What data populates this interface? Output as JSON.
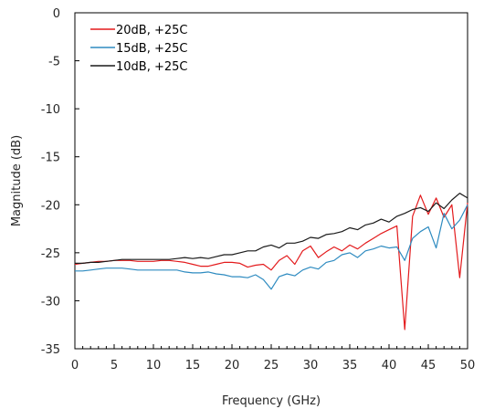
{
  "chart_data": {
    "type": "line",
    "xlabel": "Frequency (GHz)",
    "ylabel": "Magnitude (dB)",
    "xlim": [
      0,
      50
    ],
    "ylim": [
      -35,
      0
    ],
    "xticks": [
      0,
      5,
      10,
      15,
      20,
      25,
      30,
      35,
      40,
      45,
      50
    ],
    "yticks": [
      0,
      -5,
      -10,
      -15,
      -20,
      -25,
      -30,
      -35
    ],
    "grid": false,
    "legend_position": "top-left",
    "series": [
      {
        "name": "20dB, +25C",
        "color": "#e31a1c",
        "x": [
          0,
          1,
          2,
          3,
          4,
          5,
          6,
          7,
          8,
          9,
          10,
          11,
          12,
          13,
          14,
          15,
          16,
          17,
          18,
          19,
          20,
          21,
          22,
          23,
          24,
          25,
          26,
          27,
          28,
          29,
          30,
          31,
          32,
          33,
          34,
          35,
          36,
          37,
          38,
          39,
          40,
          41,
          42,
          43,
          44,
          45,
          46,
          47,
          48,
          49,
          50
        ],
        "y": [
          -26.2,
          -26.1,
          -26.0,
          -25.9,
          -25.9,
          -25.8,
          -25.8,
          -25.8,
          -25.9,
          -25.9,
          -25.9,
          -25.8,
          -25.8,
          -25.9,
          -26.0,
          -26.2,
          -26.4,
          -26.4,
          -26.2,
          -26.0,
          -26.0,
          -26.1,
          -26.5,
          -26.3,
          -26.2,
          -26.8,
          -25.8,
          -25.3,
          -26.2,
          -24.8,
          -24.3,
          -25.5,
          -24.9,
          -24.4,
          -24.8,
          -24.2,
          -24.6,
          -24.0,
          -23.5,
          -23.0,
          -22.6,
          -22.2,
          -33.0,
          -21.2,
          -19.0,
          -21.0,
          -19.3,
          -21.3,
          -20.0,
          -27.6,
          -19.8
        ]
      },
      {
        "name": "15dB, +25C",
        "color": "#2e8bc0",
        "x": [
          0,
          1,
          2,
          3,
          4,
          5,
          6,
          7,
          8,
          9,
          10,
          11,
          12,
          13,
          14,
          15,
          16,
          17,
          18,
          19,
          20,
          21,
          22,
          23,
          24,
          25,
          26,
          27,
          28,
          29,
          30,
          31,
          32,
          33,
          34,
          35,
          36,
          37,
          38,
          39,
          40,
          41,
          42,
          43,
          44,
          45,
          46,
          47,
          48,
          49,
          50
        ],
        "y": [
          -26.9,
          -26.9,
          -26.8,
          -26.7,
          -26.6,
          -26.6,
          -26.6,
          -26.7,
          -26.8,
          -26.8,
          -26.8,
          -26.8,
          -26.8,
          -26.8,
          -27.0,
          -27.1,
          -27.1,
          -27.0,
          -27.2,
          -27.3,
          -27.5,
          -27.5,
          -27.6,
          -27.3,
          -27.8,
          -28.8,
          -27.5,
          -27.2,
          -27.4,
          -26.8,
          -26.5,
          -26.7,
          -26.0,
          -25.8,
          -25.2,
          -25.0,
          -25.5,
          -24.8,
          -24.6,
          -24.3,
          -24.5,
          -24.4,
          -25.8,
          -23.5,
          -22.8,
          -22.3,
          -24.5,
          -20.9,
          -22.5,
          -21.6,
          -20.0
        ]
      },
      {
        "name": "10dB, +25C",
        "color": "#1a1a1a",
        "x": [
          0,
          1,
          2,
          3,
          4,
          5,
          6,
          7,
          8,
          9,
          10,
          11,
          12,
          13,
          14,
          15,
          16,
          17,
          18,
          19,
          20,
          21,
          22,
          23,
          24,
          25,
          26,
          27,
          28,
          29,
          30,
          31,
          32,
          33,
          34,
          35,
          36,
          37,
          38,
          39,
          40,
          41,
          42,
          43,
          44,
          45,
          46,
          47,
          48,
          49,
          50
        ],
        "y": [
          -26.1,
          -26.1,
          -26.0,
          -26.0,
          -25.9,
          -25.8,
          -25.7,
          -25.7,
          -25.7,
          -25.7,
          -25.7,
          -25.7,
          -25.7,
          -25.6,
          -25.5,
          -25.6,
          -25.5,
          -25.6,
          -25.4,
          -25.2,
          -25.2,
          -25.0,
          -24.8,
          -24.8,
          -24.4,
          -24.2,
          -24.5,
          -24.0,
          -24.0,
          -23.8,
          -23.4,
          -23.5,
          -23.1,
          -23.0,
          -22.8,
          -22.4,
          -22.6,
          -22.1,
          -21.9,
          -21.5,
          -21.8,
          -21.2,
          -20.9,
          -20.5,
          -20.3,
          -20.7,
          -19.8,
          -20.4,
          -19.5,
          -18.8,
          -19.3
        ]
      }
    ]
  }
}
